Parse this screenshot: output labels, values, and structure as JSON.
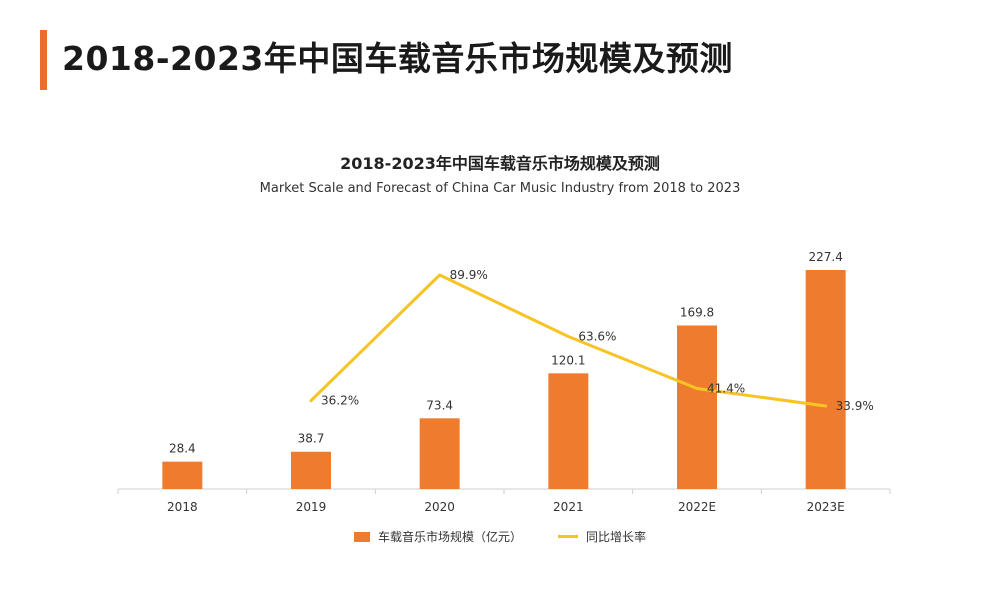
{
  "page_title": "2018-2023年中国车载音乐市场规模及预测",
  "chart_data": {
    "type": "bar",
    "title": "2018-2023年中国车载音乐市场规模及预测",
    "subtitle": "Market Scale and Forecast of China Car Music Industry from 2018 to 2023",
    "categories": [
      "2018",
      "2019",
      "2020",
      "2021",
      "2022E",
      "2023E"
    ],
    "series": [
      {
        "name": "车载音乐市场规模（亿元）",
        "type": "bar",
        "color": "#ef7c2e",
        "values": [
          28.4,
          38.7,
          73.4,
          120.1,
          169.8,
          227.4
        ],
        "labels": [
          "28.4",
          "38.7",
          "73.4",
          "120.1",
          "169.8",
          "227.4"
        ]
      },
      {
        "name": "同比增长率",
        "type": "line",
        "color": "#f7c325",
        "values": [
          null,
          36.2,
          89.9,
          63.6,
          41.4,
          33.9
        ],
        "labels": [
          "",
          "36.2%",
          "89.9%",
          "63.6%",
          "41.4%",
          "33.9%"
        ]
      }
    ],
    "ylim_bar": [
      0,
      250
    ],
    "ylim_line": [
      0,
      100
    ],
    "grid": false,
    "legend_position": "bottom"
  }
}
